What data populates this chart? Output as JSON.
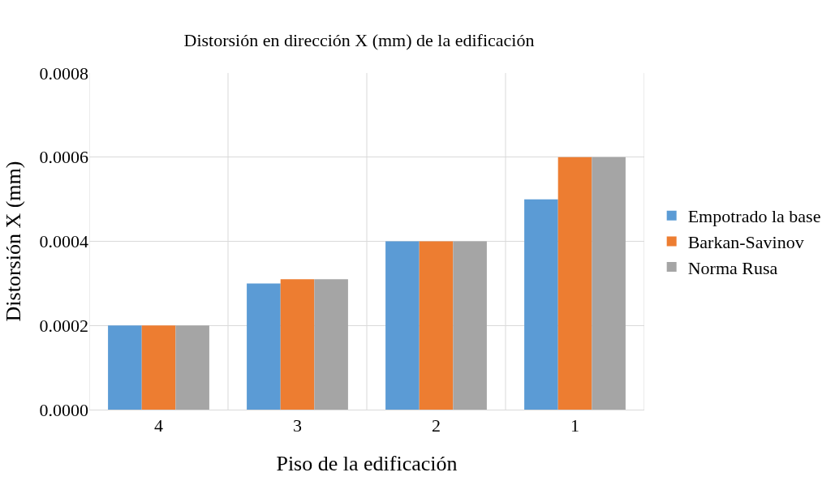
{
  "chart_data": {
    "type": "bar",
    "title": "Distorsión en dirección X (mm) de la edificación",
    "xlabel": "Piso de la edificación",
    "ylabel": "Distorsión X (mm)",
    "categories": [
      "4",
      "3",
      "2",
      "1"
    ],
    "series": [
      {
        "name": "Empotrado la base",
        "color": "#5b9bd5",
        "values": [
          0.0002,
          0.0003,
          0.0004,
          0.0005
        ]
      },
      {
        "name": "Barkan-Savinov",
        "color": "#ed7d31",
        "values": [
          0.0002,
          0.00031,
          0.0004,
          0.0006
        ]
      },
      {
        "name": "Norma Rusa",
        "color": "#a5a5a5",
        "values": [
          0.0002,
          0.00031,
          0.0004,
          0.0006
        ]
      }
    ],
    "ylim": [
      0,
      0.0008
    ],
    "yticks": [
      {
        "value": 0,
        "label": "0.0000"
      },
      {
        "value": 0.0002,
        "label": "0.0002"
      },
      {
        "value": 0.0004,
        "label": "0.0004"
      },
      {
        "value": 0.0006,
        "label": "0.0006"
      },
      {
        "value": 0.0008,
        "label": "0.0008"
      }
    ],
    "grid": true,
    "legend": "right"
  }
}
